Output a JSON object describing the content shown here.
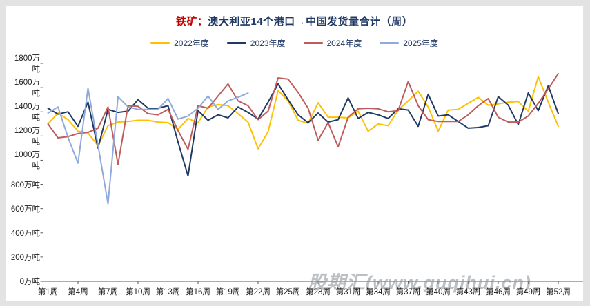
{
  "title": {
    "prefix": "铁矿：",
    "main": "澳大利亚14个港口→中国发货量合计（周）",
    "prefix_color": "#C00000",
    "main_color": "#1F3864"
  },
  "watermark": "股期汇(www.guqihui.cn)",
  "colors": {
    "series_2022": "#FFC000",
    "series_2023": "#1F3864",
    "series_2024": "#C05B5B",
    "series_2025": "#8EA9DB",
    "y_axis_line": "#C9C9C9",
    "x_axis_line": "#595959",
    "tick_color": "#595959",
    "label_color": "#1a1a1a"
  },
  "chart_data": {
    "type": "line",
    "title": "铁矿：澳大利亚14个港口→中国发货量合计（周）",
    "legend_position": "top",
    "grid": false,
    "x_unit_weeks": 52,
    "x_tick_weeks": [
      1,
      4,
      7,
      10,
      13,
      16,
      19,
      22,
      25,
      28,
      31,
      34,
      37,
      40,
      43,
      46,
      49,
      52
    ],
    "x_tick_labels": [
      "第1周",
      "第4周",
      "第7周",
      "第10周",
      "第13周",
      "第16周",
      "第19周",
      "第22周",
      "第25周",
      "第28周",
      "第31周",
      "第34周",
      "第37周",
      "第40周",
      "第43周",
      "第46周",
      "第49周",
      "第52周"
    ],
    "y_ticks": [
      0,
      200,
      400,
      600,
      800,
      1000,
      1200,
      1400,
      1600,
      1800
    ],
    "y_unit_suffix": "万吨",
    "ylim": [
      0,
      1800
    ],
    "series": [
      {
        "name": "2022年度",
        "color": "#FFC000",
        "values": [
          1300,
          1390,
          1335,
          1240,
          1225,
          1120,
          1285,
          1315,
          1320,
          1330,
          1330,
          1315,
          1310,
          1255,
          1345,
          1310,
          1440,
          1460,
          1450,
          1385,
          1315,
          1095,
          1235,
          1575,
          1490,
          1330,
          1305,
          1475,
          1355,
          1355,
          1350,
          1405,
          1240,
          1300,
          1285,
          1415,
          1490,
          1570,
          1440,
          1240,
          1415,
          1420,
          1470,
          1520,
          1455,
          1465,
          1480,
          1485,
          1405,
          1690,
          1480,
          1280
        ]
      },
      {
        "name": "2023年度",
        "color": "#1F3864",
        "values": [
          1430,
          1380,
          1400,
          1280,
          1480,
          1100,
          1420,
          1395,
          1405,
          1500,
          1430,
          1430,
          1450,
          1150,
          870,
          1410,
          1330,
          1375,
          1350,
          1440,
          1395,
          1340,
          1480,
          1630,
          1500,
          1375,
          1310,
          1390,
          1315,
          1335,
          1515,
          1345,
          1395,
          1375,
          1345,
          1425,
          1415,
          1280,
          1545,
          1365,
          1375,
          1320,
          1265,
          1270,
          1285,
          1525,
          1455,
          1295,
          1555,
          1410,
          1615,
          1385
        ]
      },
      {
        "name": "2024年度",
        "color": "#C05B5B",
        "values": [
          1300,
          1185,
          1195,
          1220,
          1230,
          1265,
          1440,
          965,
          1450,
          1445,
          1385,
          1375,
          1420,
          1245,
          1090,
          1450,
          1430,
          1530,
          1630,
          1490,
          1450,
          1335,
          1405,
          1680,
          1670,
          1560,
          1430,
          1165,
          1310,
          1110,
          1355,
          1425,
          1430,
          1425,
          1400,
          1410,
          1650,
          1450,
          1335,
          1320,
          1320,
          1320,
          1375,
          1450,
          1510,
          1355,
          1315,
          1315,
          1365,
          1470,
          1590,
          1715
        ]
      },
      {
        "name": "2025年度",
        "color": "#8EA9DB",
        "values": [
          1390,
          1440,
          1190,
          975,
          1595,
          1125,
          640,
          1525,
          1440,
          1420,
          1420,
          1420,
          1510,
          1340,
          1365,
          1430,
          1530,
          1420,
          1490,
          1520,
          1555
        ]
      }
    ]
  }
}
